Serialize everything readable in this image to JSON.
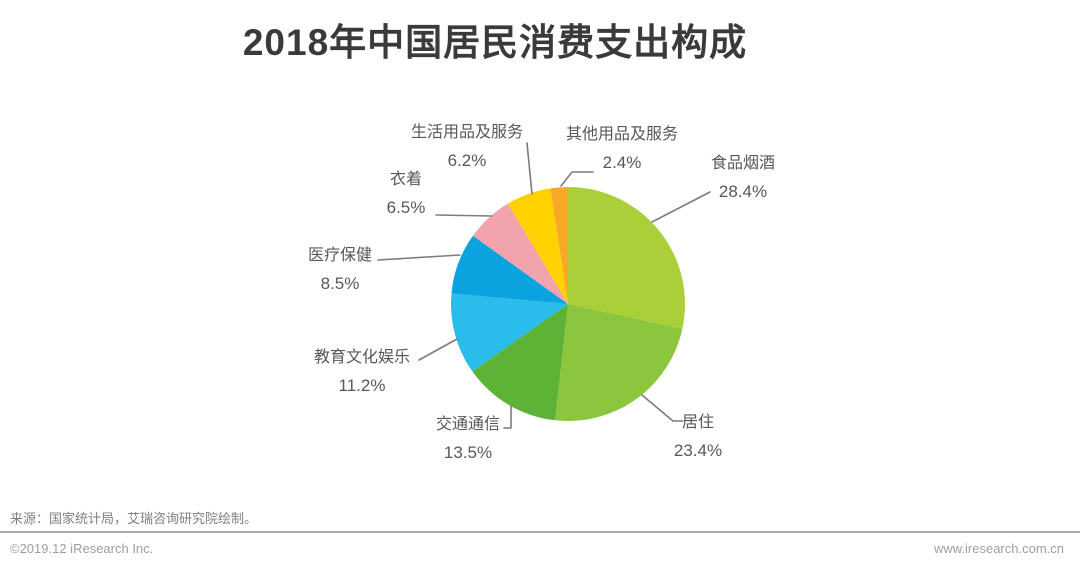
{
  "title": "2018年中国居民消费支出构成",
  "chart_data": {
    "type": "pie",
    "title": "2018年中国居民消费支出构成",
    "unit": "%",
    "start_angle_deg": 0,
    "direction": "clockwise",
    "legend": "none",
    "slices": [
      {
        "id": "food-tobacco-alcohol",
        "label": "食品烟酒",
        "value": 28.4,
        "value_label": "28.4%",
        "color": "#AACF38"
      },
      {
        "id": "housing",
        "label": "居住",
        "value": 23.4,
        "value_label": "23.4%",
        "color": "#8CC63F"
      },
      {
        "id": "transport-communication",
        "label": "交通通信",
        "value": 13.5,
        "value_label": "13.5%",
        "color": "#5EB337"
      },
      {
        "id": "education-culture-entertainment",
        "label": "教育文化娱乐",
        "value": 11.2,
        "value_label": "11.2%",
        "color": "#2ABDEC"
      },
      {
        "id": "healthcare",
        "label": "医疗保健",
        "value": 8.5,
        "value_label": "8.5%",
        "color": "#0BA2E0"
      },
      {
        "id": "clothing",
        "label": "衣着",
        "value": 6.5,
        "value_label": "6.5%",
        "color": "#F2A3AC"
      },
      {
        "id": "household-goods-services",
        "label": "生活用品及服务",
        "value": 6.2,
        "value_label": "6.2%",
        "color": "#FFD100"
      },
      {
        "id": "other-goods-services",
        "label": "其他用品及服务",
        "value": 2.4,
        "value_label": "2.4%",
        "color": "#F8A826"
      }
    ]
  },
  "footer": {
    "source": "来源：国家统计局，艾瑞咨询研究院绘制。",
    "copyright": "©2019.12 iResearch Inc.",
    "website": "www.iresearch.com.cn"
  }
}
